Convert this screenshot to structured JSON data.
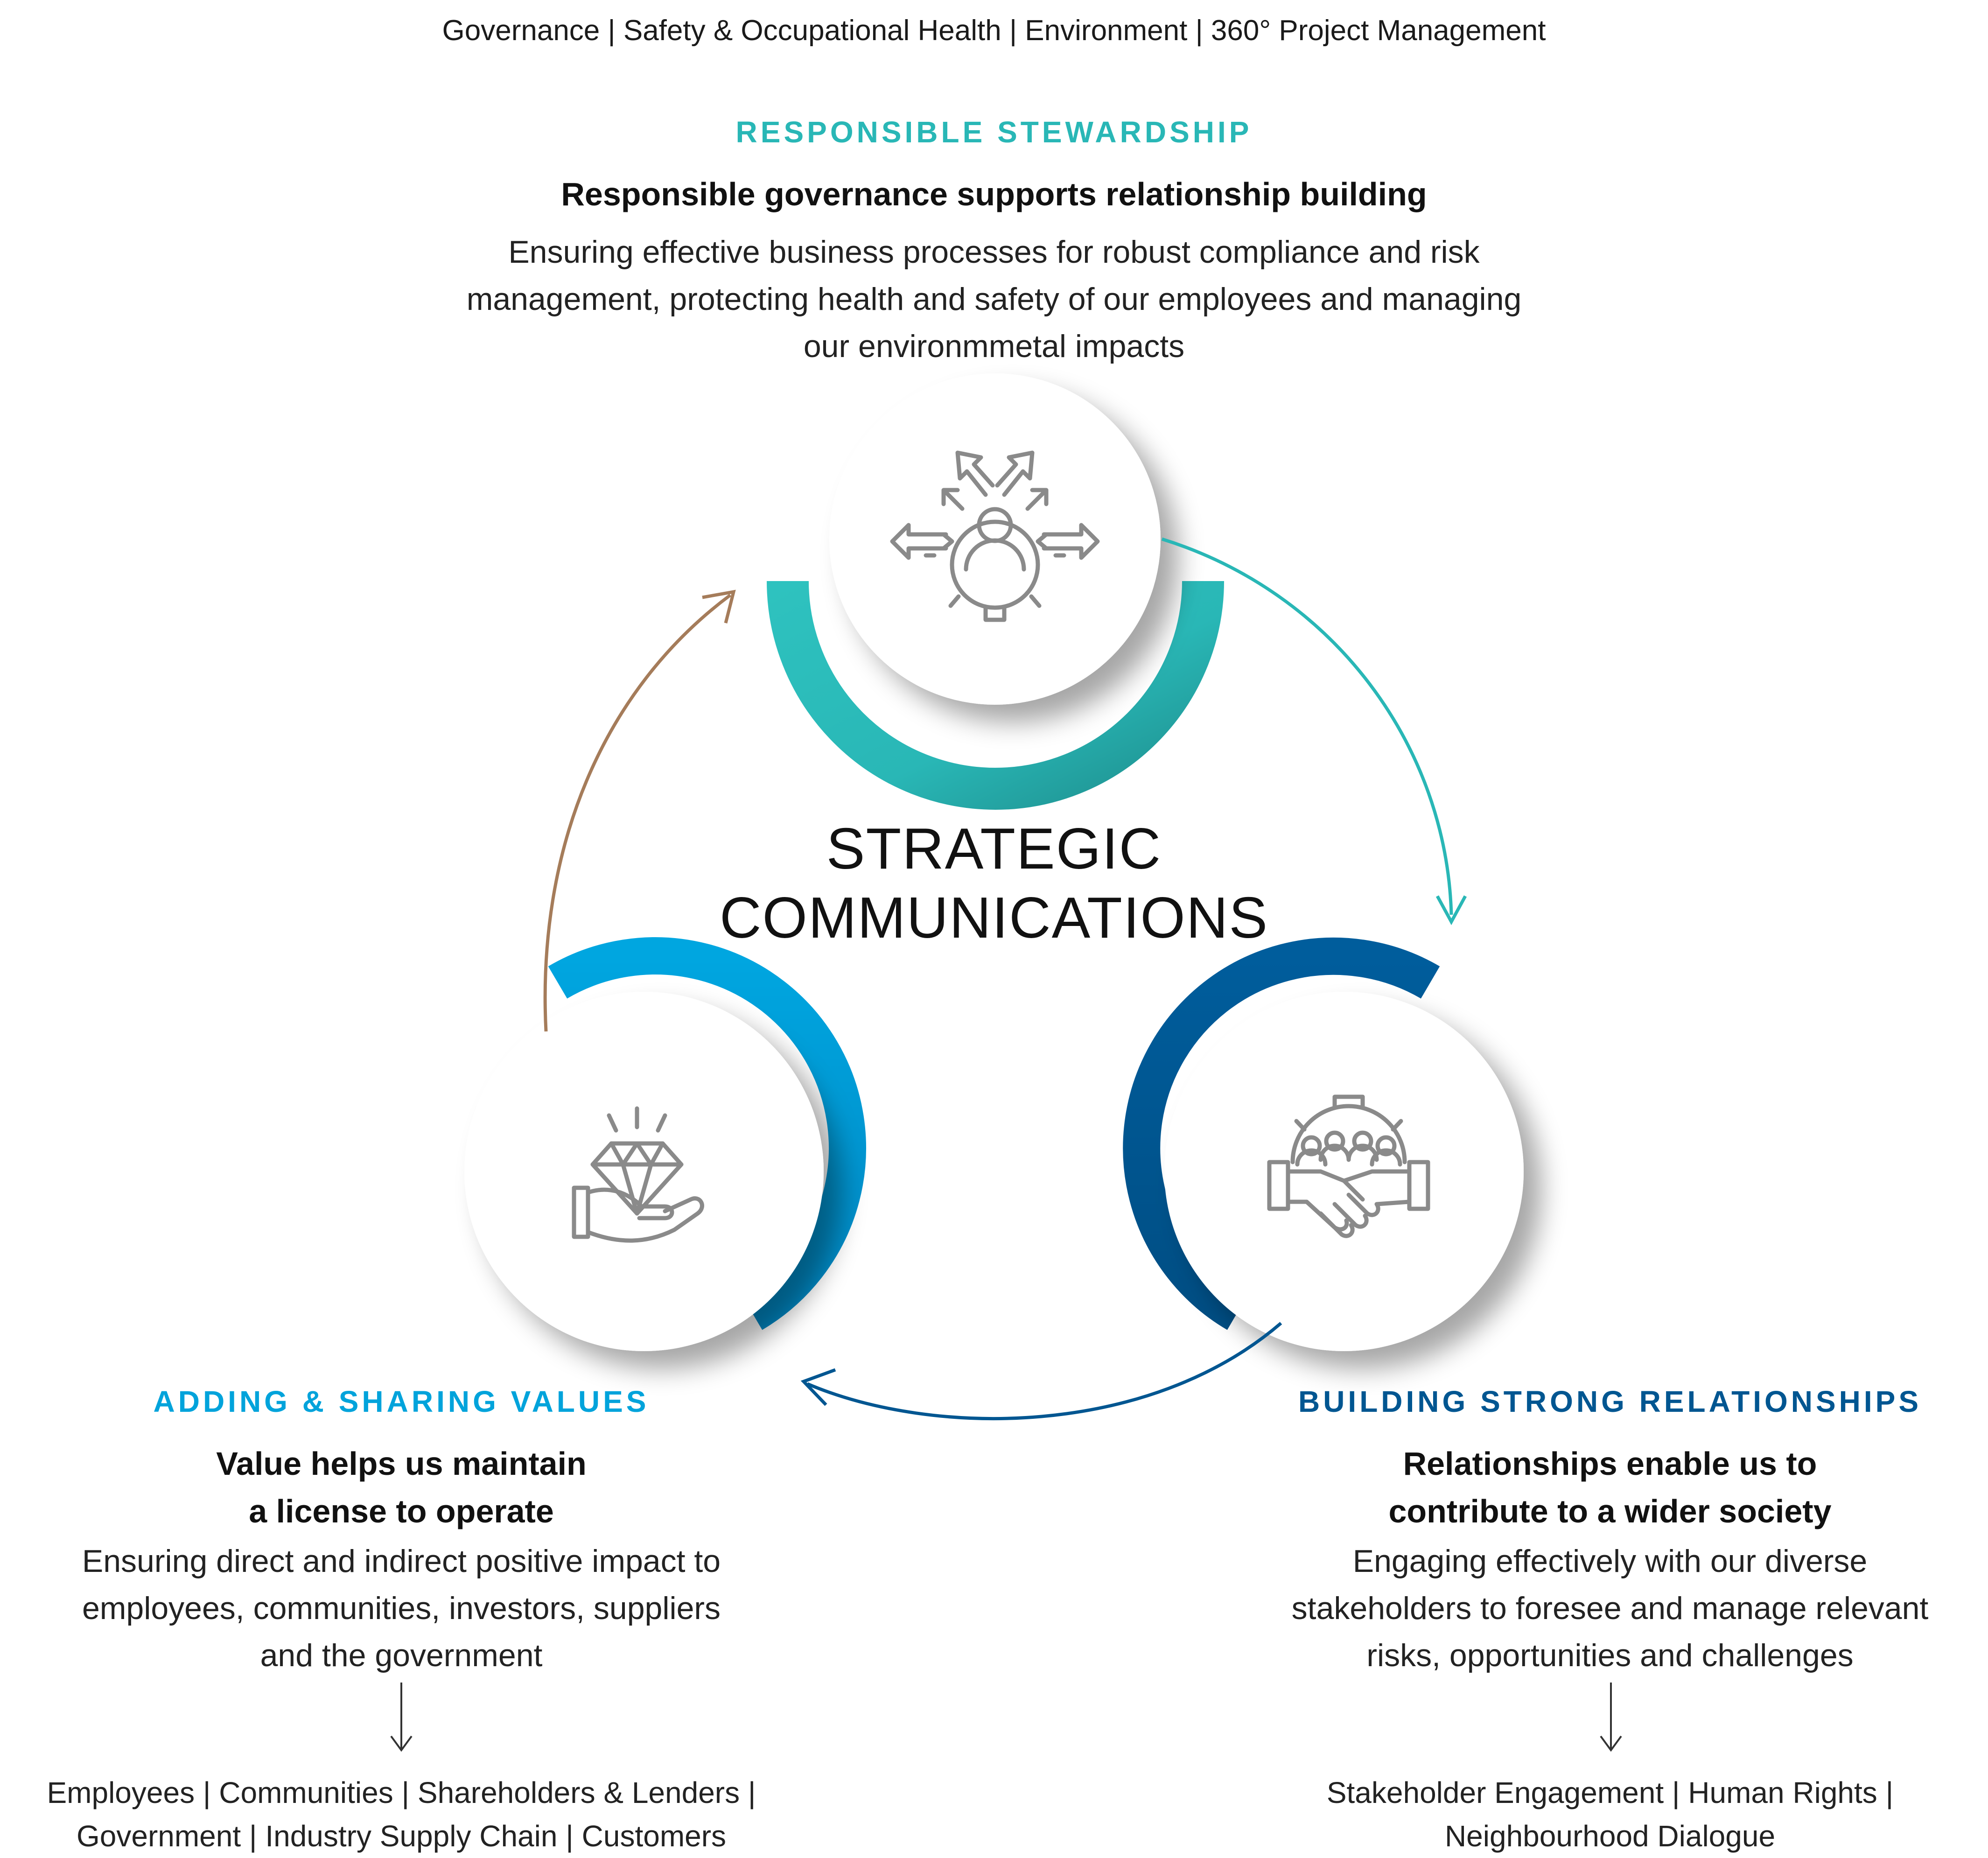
{
  "top_line": "Governance | Safety & Occupational Health | Environment | 360° Project Management",
  "center": {
    "line1": "STRATEGIC",
    "line2": "COMMUNICATIONS"
  },
  "colors": {
    "teal": "#29b7b6",
    "sky_blue": "#00a3db",
    "navy": "#005691",
    "brown_arrow": "#a57c5a",
    "icon_gray": "#8a8a8a"
  },
  "sections": {
    "stewardship": {
      "title": "RESPONSIBLE STEWARDSHIP",
      "subtitle": "Responsible governance supports relationship building",
      "description": [
        "Ensuring effective business processes for robust compliance and risk",
        "management, protecting health and safety of our employees and managing",
        "our environmmetal impacts"
      ],
      "icon": "people-gear-arrows-icon"
    },
    "values": {
      "title": "ADDING & SHARING VALUES",
      "subtitle": [
        "Value helps us maintain",
        "a license to operate"
      ],
      "description": [
        "Ensuring direct and indirect positive impact to",
        "employees, communities, investors, suppliers",
        "and the government"
      ],
      "tags": [
        "Employees | Communities | Shareholders & Lenders |",
        "Government | Industry Supply Chain | Customers"
      ],
      "icon": "hand-diamond-icon"
    },
    "relationships": {
      "title": "BUILDING STRONG RELATIONSHIPS",
      "subtitle": [
        "Relationships enable us to",
        "contribute to a wider society"
      ],
      "description": [
        "Engaging effectively with our diverse",
        "stakeholders to foresee and manage relevant",
        "risks, opportunities and challenges"
      ],
      "tags": [
        "Stakeholder Engagement | Human Rights |",
        "Neighbourhood Dialogue"
      ],
      "icon": "handshake-gear-icon"
    }
  }
}
